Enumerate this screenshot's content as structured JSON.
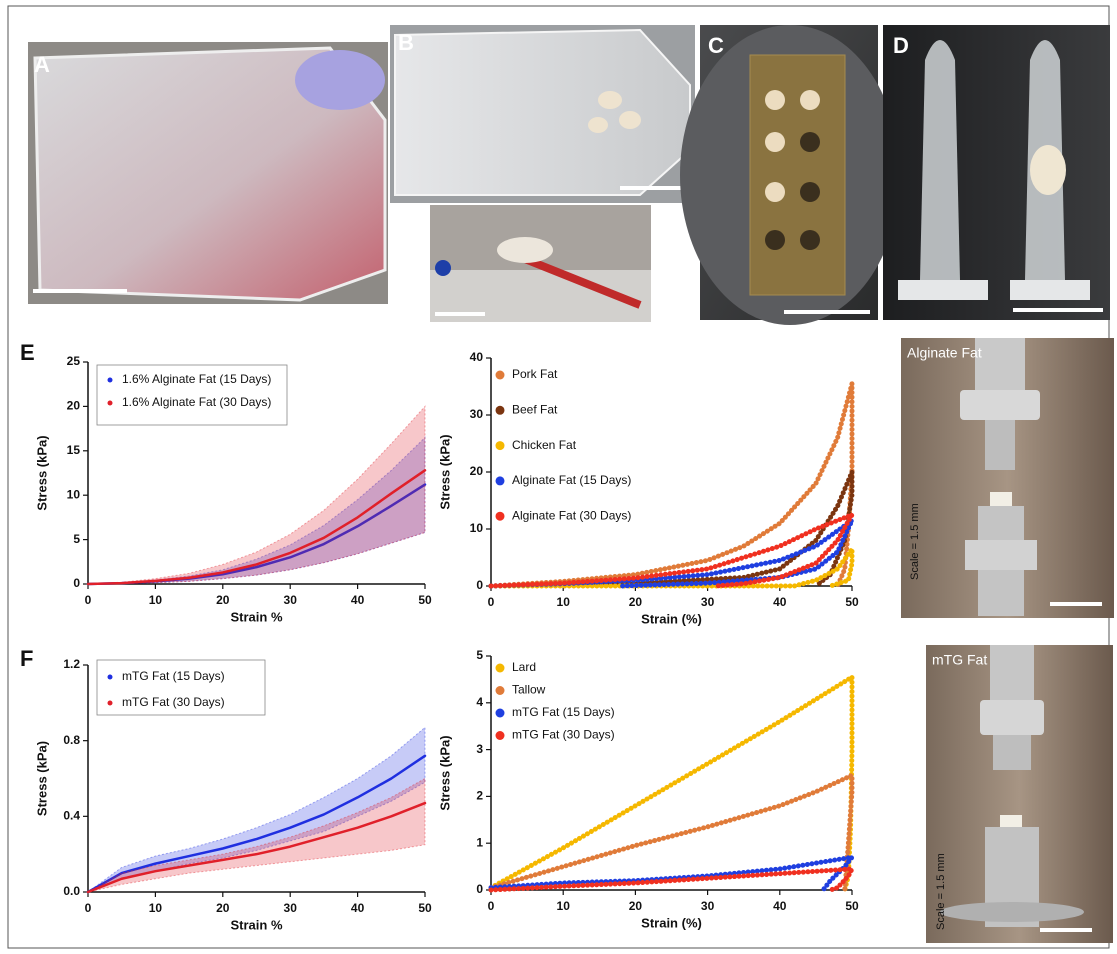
{
  "figure": {
    "labels": [
      "A",
      "B",
      "C",
      "D",
      "E",
      "F"
    ],
    "photo_captions": [
      "Alginate Fat",
      "mTG Fat"
    ],
    "scale_notes": [
      "Scale = 1.5 mm",
      "Scale = 1.5 mm"
    ]
  },
  "chart_data": [
    {
      "type": "line",
      "xlabel": "Strain %",
      "ylabel": "Stress (kPa)",
      "xlim": [
        0,
        50
      ],
      "ylim": [
        0,
        25
      ],
      "xticks": [
        0,
        10,
        20,
        30,
        40,
        50
      ],
      "yticks": [
        0,
        5,
        10,
        15,
        20,
        25
      ],
      "legend": "upper left",
      "legend_frame": true,
      "series": [
        {
          "name": "1.6% Alginate Fat (15 Days)",
          "color": "#1f2fe0",
          "x": [
            0,
            5,
            10,
            15,
            20,
            25,
            30,
            35,
            40,
            45,
            50
          ],
          "values": [
            0,
            0.1,
            0.3,
            0.6,
            1.1,
            1.9,
            3.0,
            4.5,
            6.5,
            8.8,
            11.2
          ],
          "upper": [
            0,
            0.15,
            0.45,
            0.9,
            1.6,
            2.8,
            4.4,
            6.6,
            9.5,
            12.8,
            16.5
          ],
          "lower": [
            0,
            0.05,
            0.15,
            0.3,
            0.6,
            1.0,
            1.6,
            2.4,
            3.4,
            4.6,
            5.8
          ]
        },
        {
          "name": "1.6% Alginate Fat (30 Days)",
          "color": "#e0202a",
          "x": [
            0,
            5,
            10,
            15,
            20,
            25,
            30,
            35,
            40,
            45,
            50
          ],
          "values": [
            0,
            0.1,
            0.35,
            0.7,
            1.3,
            2.2,
            3.5,
            5.2,
            7.5,
            10.2,
            12.8
          ],
          "upper": [
            0,
            0.2,
            0.6,
            1.2,
            2.2,
            3.6,
            5.6,
            8.3,
            11.8,
            15.8,
            20.0
          ],
          "lower": [
            0,
            0.05,
            0.15,
            0.3,
            0.6,
            1.0,
            1.6,
            2.4,
            3.4,
            4.6,
            5.8
          ]
        }
      ]
    },
    {
      "type": "line",
      "xlabel": "Strain (%)",
      "ylabel": "Stress (kPa)",
      "xlim": [
        0,
        50
      ],
      "ylim": [
        0,
        40
      ],
      "xticks": [
        0,
        10,
        20,
        30,
        40,
        50
      ],
      "yticks": [
        0,
        10,
        20,
        30,
        40
      ],
      "legend": "upper left",
      "legend_frame": false,
      "series": [
        {
          "name": "Pork Fat",
          "color": "#e07b39",
          "x": [
            0,
            10,
            20,
            30,
            35,
            40,
            45,
            48,
            50,
            50,
            50,
            50,
            49.5,
            49,
            48
          ],
          "values": [
            0,
            0.8,
            2,
            4.5,
            7,
            11,
            18,
            26,
            35.5,
            30,
            25,
            20,
            10,
            3,
            0
          ]
        },
        {
          "name": "Beef Fat",
          "color": "#7b3510",
          "x": [
            0,
            20,
            35,
            40,
            45,
            48,
            50,
            50,
            49,
            47,
            45
          ],
          "values": [
            0,
            0.5,
            1.5,
            3,
            8,
            14,
            20,
            16,
            8,
            2,
            0
          ]
        },
        {
          "name": "Chicken Fat",
          "color": "#f5b800",
          "x": [
            0,
            42,
            45,
            48,
            50,
            50,
            49.5,
            47
          ],
          "values": [
            0,
            0,
            1,
            3,
            6.5,
            4,
            1,
            0
          ]
        },
        {
          "name": "Alginate Fat (15 Days)",
          "color": "#1f3fe0",
          "x": [
            0,
            10,
            20,
            30,
            40,
            45,
            50,
            48,
            45,
            40,
            30,
            18
          ],
          "values": [
            0,
            0.4,
            1,
            2,
            4.5,
            7,
            11.5,
            6,
            3,
            1.5,
            0.5,
            0
          ]
        },
        {
          "name": "Alginate Fat (30 Days)",
          "color": "#f03020",
          "x": [
            0,
            10,
            20,
            30,
            40,
            45,
            50,
            48,
            45,
            40,
            35,
            31
          ],
          "values": [
            0,
            0.5,
            1.4,
            3,
            7,
            10,
            12.5,
            8,
            4,
            1.5,
            0.4,
            0
          ]
        }
      ]
    },
    {
      "type": "line",
      "xlabel": "Strain %",
      "ylabel": "Stress (kPa)",
      "xlim": [
        0,
        50
      ],
      "ylim": [
        0,
        1.2
      ],
      "xticks": [
        0,
        10,
        20,
        30,
        40,
        50
      ],
      "yticks": [
        {
          "value": 0,
          "label": "0.0"
        },
        0.4,
        0.8,
        1.2
      ],
      "legend": "upper left",
      "legend_frame": true,
      "series": [
        {
          "name": "mTG Fat (15 Days)",
          "color": "#1f2fe0",
          "x": [
            0,
            5,
            10,
            15,
            20,
            25,
            30,
            35,
            40,
            45,
            50
          ],
          "values": [
            0,
            0.1,
            0.15,
            0.19,
            0.23,
            0.28,
            0.34,
            0.41,
            0.5,
            0.6,
            0.72
          ],
          "upper": [
            0,
            0.13,
            0.19,
            0.23,
            0.28,
            0.34,
            0.41,
            0.5,
            0.6,
            0.72,
            0.87
          ],
          "lower": [
            0,
            0.07,
            0.11,
            0.15,
            0.18,
            0.22,
            0.27,
            0.32,
            0.4,
            0.48,
            0.58
          ]
        },
        {
          "name": "mTG Fat (30 Days)",
          "color": "#e0202a",
          "x": [
            0,
            5,
            10,
            15,
            20,
            25,
            30,
            35,
            40,
            45,
            50
          ],
          "values": [
            0,
            0.07,
            0.11,
            0.14,
            0.17,
            0.2,
            0.24,
            0.29,
            0.34,
            0.4,
            0.47
          ],
          "upper": [
            0,
            0.1,
            0.14,
            0.17,
            0.2,
            0.24,
            0.29,
            0.35,
            0.42,
            0.5,
            0.6
          ],
          "lower": [
            0,
            0.04,
            0.07,
            0.1,
            0.12,
            0.14,
            0.16,
            0.18,
            0.2,
            0.22,
            0.25
          ]
        }
      ]
    },
    {
      "type": "line",
      "xlabel": "Strain (%)",
      "ylabel": "Stress (kPa)",
      "xlim": [
        0,
        50
      ],
      "ylim": [
        0,
        5
      ],
      "xticks": [
        0,
        10,
        20,
        30,
        40,
        50
      ],
      "yticks": [
        0,
        1,
        2,
        3,
        4,
        5
      ],
      "legend": "upper left",
      "legend_frame": false,
      "series": [
        {
          "name": "Lard",
          "color": "#f5b800",
          "x": [
            0,
            10,
            20,
            30,
            40,
            50,
            50,
            50,
            49.8,
            49.5,
            49
          ],
          "values": [
            0.05,
            0.9,
            1.8,
            2.7,
            3.6,
            4.55,
            4.3,
            3,
            1.3,
            0.3,
            0
          ]
        },
        {
          "name": "Tallow",
          "color": "#e07b39",
          "x": [
            0,
            10,
            20,
            30,
            40,
            45,
            50,
            50,
            49.5,
            49
          ],
          "values": [
            0.05,
            0.5,
            0.95,
            1.35,
            1.8,
            2.1,
            2.45,
            2.1,
            1,
            0
          ]
        },
        {
          "name": "mTG Fat (15 Days)",
          "color": "#1f3fe0",
          "x": [
            0,
            10,
            20,
            30,
            40,
            50,
            49,
            47,
            46
          ],
          "values": [
            0.05,
            0.15,
            0.2,
            0.3,
            0.45,
            0.7,
            0.5,
            0.2,
            0
          ]
        },
        {
          "name": "mTG Fat (30 Days)",
          "color": "#f03020",
          "x": [
            0,
            10,
            20,
            30,
            40,
            50,
            49.5,
            48,
            47
          ],
          "values": [
            0,
            0.08,
            0.15,
            0.25,
            0.35,
            0.45,
            0.3,
            0.05,
            0
          ]
        }
      ]
    }
  ]
}
